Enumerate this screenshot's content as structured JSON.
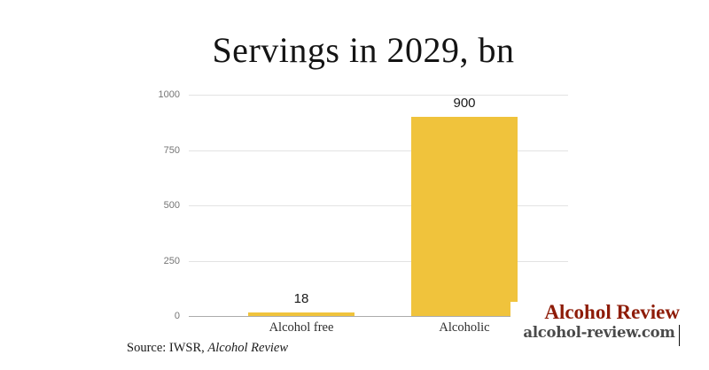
{
  "title": "Servings in 2029, bn",
  "chart_data": {
    "type": "bar",
    "title": "Servings in 2029, bn",
    "categories": [
      "Alcohol free",
      "Alcoholic"
    ],
    "values": [
      18,
      900
    ],
    "data_labels": [
      "18",
      "900"
    ],
    "xlabel": "",
    "ylabel": "",
    "ylim": [
      0,
      1000
    ],
    "yticks": [
      0,
      250,
      500,
      750,
      1000
    ],
    "grid": true,
    "legend": "none",
    "bar_color": "#f0c33c",
    "gridline_color": "#e3e3e3",
    "baseline_color": "#ababab"
  },
  "source": {
    "prefix": "Source: IWSR, ",
    "publication": "Alcohol Review"
  },
  "branding": {
    "name": "Alcohol Review",
    "domain": "alcohol-review.com",
    "name_color": "#8e1c08",
    "domain_color": "#4a4a4a"
  }
}
